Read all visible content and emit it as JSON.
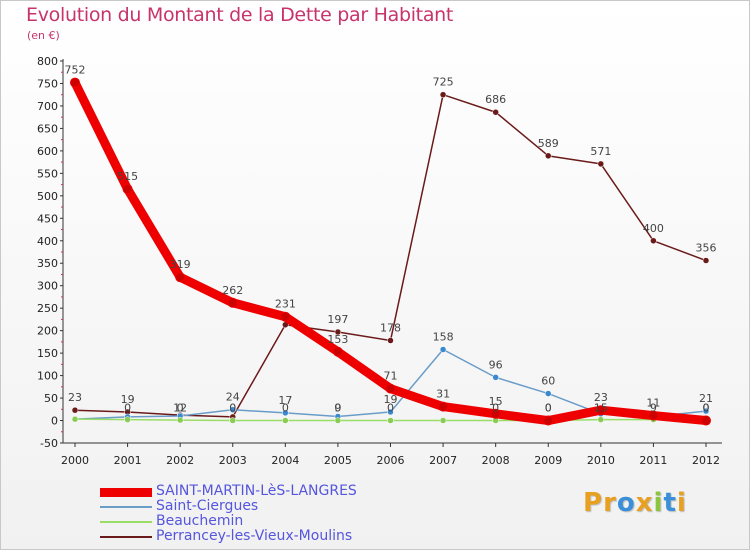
{
  "title": "Evolution du Montant de la Dette par Habitant",
  "subtitle": "(en €)",
  "logo": {
    "text": "Proxiti",
    "letters": [
      {
        "ch": "P",
        "color": "#e8a020"
      },
      {
        "ch": "r",
        "color": "#e8a020"
      },
      {
        "ch": "o",
        "color": "#3a8fd8"
      },
      {
        "ch": "x",
        "color": "#e8a020"
      },
      {
        "ch": "i",
        "color": "#8cc63e"
      },
      {
        "ch": "t",
        "color": "#3a8fd8"
      },
      {
        "ch": "i",
        "color": "#e8a020"
      }
    ]
  },
  "chart_data": {
    "type": "line",
    "title": "Evolution du Montant de la Dette par Habitant",
    "ylabel": "(en €)",
    "xlabel": "",
    "ylim": [
      -50,
      800
    ],
    "yticks": [
      -50,
      0,
      50,
      100,
      150,
      200,
      250,
      300,
      350,
      400,
      450,
      500,
      550,
      600,
      650,
      700,
      750,
      800
    ],
    "x": [
      "2000",
      "2001",
      "2002",
      "2003",
      "2004",
      "2005",
      "2006",
      "2007",
      "2008",
      "2009",
      "2010",
      "2011",
      "2012"
    ],
    "grid": false,
    "legend_position": "bottom-left",
    "series": [
      {
        "name": "Perrancey-les-Vieux-Moulins",
        "color": "#6b1a1a",
        "marker": "#6b1a1a",
        "values": [
          23,
          19,
          12,
          8,
          213,
          197,
          178,
          725,
          686,
          589,
          571,
          400,
          356
        ],
        "labels": [
          "23",
          "19",
          "",
          "",
          "",
          "197",
          "178",
          "725",
          "686",
          "589",
          "571",
          "400",
          "356"
        ]
      },
      {
        "name": "Saint-Ciergues",
        "color": "#6a9cc8",
        "marker": "#3a88d0",
        "values": [
          3,
          8,
          10,
          24,
          17,
          9,
          19,
          158,
          96,
          60,
          15,
          9,
          21
        ],
        "labels": [
          "",
          "",
          "",
          "24",
          "17",
          "",
          "19",
          "158",
          "96",
          "60",
          "",
          "",
          "21"
        ]
      },
      {
        "name": "Beauchemin",
        "color": "#99dd66",
        "marker": "#88cc55",
        "values": [
          3,
          2,
          1,
          0,
          0,
          0,
          0,
          0,
          0,
          0,
          2,
          2,
          1
        ],
        "labels": [
          "",
          "",
          "",
          "",
          "",
          "",
          "",
          "",
          "",
          "",
          "",
          "",
          ""
        ]
      },
      {
        "name": "SAINT-MARTIN-LèS-LANGRES",
        "color": "#ee0000",
        "marker": "#cc0000",
        "values": [
          752,
          515,
          319,
          262,
          231,
          153,
          71,
          31,
          15,
          0,
          23,
          11,
          0
        ],
        "labels": [
          "752",
          "515",
          "319",
          "262",
          "231",
          "153",
          "71",
          "31",
          "15",
          "0",
          "23",
          "11",
          "0"
        ]
      }
    ],
    "extra_labels": [
      {
        "x": "2001",
        "text": "0"
      },
      {
        "x": "2002",
        "text": "12"
      },
      {
        "x": "2002",
        "text": "0"
      },
      {
        "x": "2003",
        "text": "0"
      },
      {
        "x": "2004",
        "text": "0"
      },
      {
        "x": "2005",
        "text": "9"
      },
      {
        "x": "2005",
        "text": "0"
      },
      {
        "x": "2006",
        "text": "0"
      },
      {
        "x": "2008",
        "text": "0"
      },
      {
        "x": "2009",
        "text": "0"
      },
      {
        "x": "2010",
        "text": "15"
      },
      {
        "x": "2011",
        "text": "9"
      },
      {
        "x": "2012",
        "text": "0"
      }
    ]
  },
  "legend": [
    {
      "label": "SAINT-MARTIN-LèS-LANGRES",
      "color": "#ee0000",
      "thickness": 9
    },
    {
      "label": "Saint-Ciergues",
      "color": "#6a9cc8",
      "thickness": 2
    },
    {
      "label": "Beauchemin",
      "color": "#99dd66",
      "thickness": 2
    },
    {
      "label": "Perrancey-les-Vieux-Moulins",
      "color": "#6b1a1a",
      "thickness": 2
    }
  ]
}
